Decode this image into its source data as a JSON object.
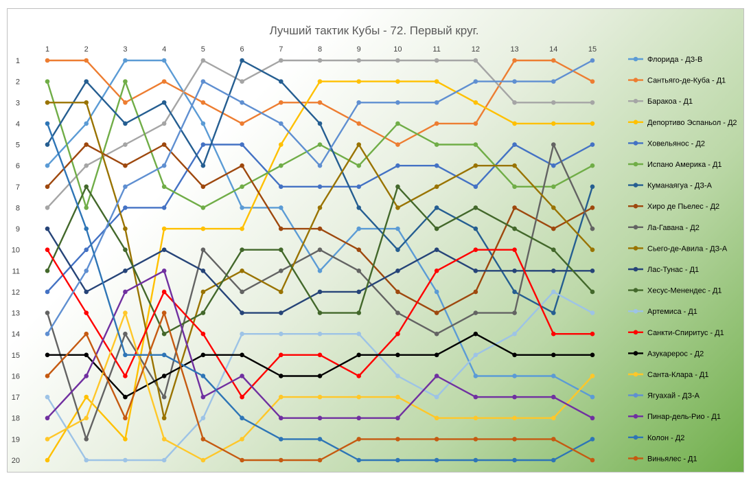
{
  "chart_data": {
    "type": "line",
    "title": "Лучший тактик Кубы - 72. Первый круг.",
    "x": [
      1,
      2,
      3,
      4,
      5,
      6,
      7,
      8,
      9,
      10,
      11,
      12,
      13,
      14,
      15
    ],
    "xlabel": "",
    "ylabel": "",
    "ylim": [
      1,
      20
    ],
    "y_reversed": true,
    "y_ticks": [
      1,
      2,
      3,
      4,
      5,
      6,
      7,
      8,
      9,
      10,
      11,
      12,
      13,
      14,
      15,
      16,
      17,
      18,
      19,
      20
    ],
    "grid": false,
    "legend_position": "right",
    "series": [
      {
        "name": "Флорида - ДЗ-В",
        "color": "#5b9bd5",
        "values": [
          6,
          4,
          1,
          1,
          4,
          8,
          8,
          11,
          9,
          9,
          12,
          16,
          16,
          16,
          17
        ]
      },
      {
        "name": "Сантьяго-де-Куба - Д1",
        "color": "#ed7d31",
        "values": [
          1,
          1,
          3,
          2,
          3,
          4,
          3,
          3,
          4,
          5,
          4,
          4,
          1,
          1,
          2
        ]
      },
      {
        "name": "Баракоа - Д1",
        "color": "#a5a5a5",
        "values": [
          8,
          6,
          5,
          4,
          1,
          2,
          1,
          1,
          1,
          1,
          1,
          1,
          3,
          3,
          3
        ]
      },
      {
        "name": "Депортиво Эспаньол - Д2",
        "color": "#ffc000",
        "values": [
          20,
          17,
          19,
          9,
          9,
          9,
          5,
          2,
          2,
          2,
          2,
          3,
          4,
          4,
          4
        ]
      },
      {
        "name": "Ховельянос - Д2",
        "color": "#4472c4",
        "values": [
          12,
          10,
          8,
          8,
          5,
          5,
          7,
          7,
          7,
          6,
          6,
          7,
          5,
          6,
          5
        ]
      },
      {
        "name": "Испано Америка - Д1",
        "color": "#70ad47",
        "values": [
          2,
          8,
          2,
          7,
          8,
          7,
          6,
          5,
          6,
          4,
          5,
          5,
          7,
          7,
          6
        ]
      },
      {
        "name": "Куманаягуа - ДЗ-А",
        "color": "#255e91",
        "values": [
          5,
          2,
          4,
          3,
          6,
          1,
          2,
          4,
          8,
          10,
          8,
          9,
          12,
          13,
          7
        ]
      },
      {
        "name": "Хиро де Пьелес - Д2",
        "color": "#9e480e",
        "values": [
          7,
          5,
          6,
          5,
          7,
          6,
          9,
          9,
          10,
          12,
          13,
          12,
          8,
          9,
          8
        ]
      },
      {
        "name": "Ла-Гавана - Д2",
        "color": "#636363",
        "values": [
          13,
          19,
          14,
          17,
          10,
          12,
          11,
          10,
          11,
          13,
          14,
          13,
          13,
          5,
          9
        ]
      },
      {
        "name": "Сьего-де-Авила - ДЗ-А",
        "color": "#997300",
        "values": [
          3,
          3,
          9,
          18,
          12,
          11,
          12,
          8,
          5,
          8,
          7,
          6,
          6,
          8,
          10
        ]
      },
      {
        "name": "Лас-Тунас - Д1",
        "color": "#264478",
        "values": [
          9,
          12,
          11,
          10,
          11,
          13,
          13,
          12,
          12,
          11,
          10,
          11,
          11,
          11,
          11
        ]
      },
      {
        "name": "Хесус-Менендес - Д1",
        "color": "#43682b",
        "values": [
          11,
          7,
          10,
          14,
          13,
          10,
          10,
          13,
          13,
          7,
          9,
          8,
          9,
          10,
          12
        ]
      },
      {
        "name": "Артемиса - Д1",
        "color": "#9dc3e6",
        "values": [
          17,
          20,
          20,
          20,
          18,
          14,
          14,
          14,
          14,
          16,
          17,
          15,
          14,
          12,
          13
        ]
      },
      {
        "name": "Санкти-Спиритус - Д1",
        "color": "#ff0000",
        "values": [
          10,
          13,
          16,
          12,
          14,
          17,
          15,
          15,
          16,
          14,
          11,
          10,
          10,
          14,
          14
        ]
      },
      {
        "name": "Азукарерос - Д2",
        "color": "#000000",
        "values": [
          15,
          15,
          17,
          16,
          15,
          15,
          16,
          16,
          15,
          15,
          15,
          14,
          15,
          15,
          15
        ]
      },
      {
        "name": "Санта-Клара - Д1",
        "color": "#ffc729",
        "values": [
          19,
          18,
          13,
          19,
          20,
          19,
          17,
          17,
          17,
          17,
          18,
          18,
          18,
          18,
          16
        ]
      },
      {
        "name": "Ягуахай - ДЗ-А",
        "color": "#5f8fd1",
        "values": [
          14,
          11,
          7,
          6,
          2,
          3,
          4,
          6,
          3,
          3,
          3,
          2,
          2,
          2,
          1
        ]
      },
      {
        "name": "Пинар-дель-Рио - Д1",
        "color": "#7030a0",
        "values": [
          18,
          16,
          12,
          11,
          17,
          16,
          18,
          18,
          18,
          18,
          16,
          17,
          17,
          17,
          18
        ]
      },
      {
        "name": "Колон - Д2",
        "color": "#2e75b6",
        "values": [
          4,
          9,
          15,
          15,
          16,
          18,
          19,
          19,
          20,
          20,
          20,
          20,
          20,
          20,
          19
        ]
      },
      {
        "name": "Виньялес - Д1",
        "color": "#c55a11",
        "values": [
          16,
          14,
          18,
          13,
          19,
          20,
          20,
          20,
          19,
          19,
          19,
          19,
          19,
          19,
          20
        ]
      }
    ]
  }
}
